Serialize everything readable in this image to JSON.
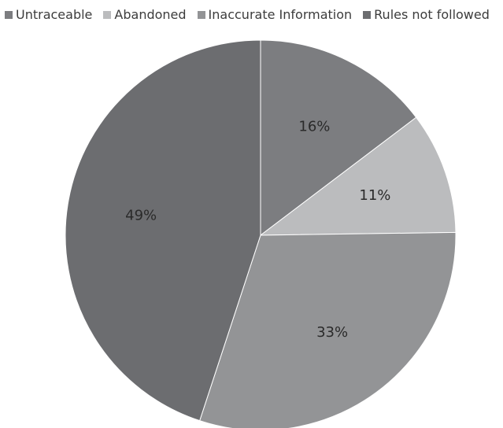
{
  "chart_data": {
    "type": "pie",
    "title": "",
    "categories": [
      "Untraceable",
      "Abandoned",
      "Inaccurate Information",
      "Rules not followed"
    ],
    "values": [
      16,
      11,
      33,
      49
    ],
    "labels": [
      "16%",
      "11%",
      "33%",
      "49%"
    ],
    "colors": [
      "#7c7d80",
      "#bbbcbe",
      "#939496",
      "#6c6d70"
    ],
    "legend": "top",
    "start": "12 o'clock",
    "direction": "clockwise"
  }
}
